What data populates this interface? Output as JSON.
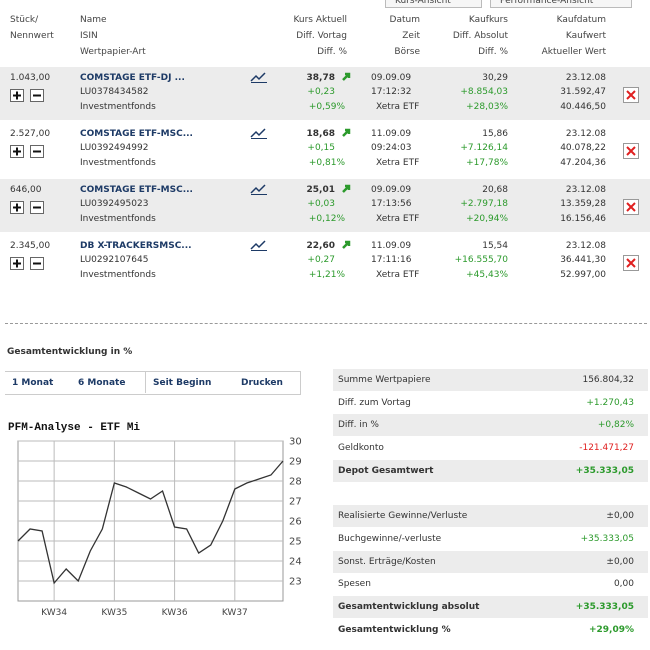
{
  "tabs": [
    "Kurs-Ansicht",
    "Performance-Ansicht"
  ],
  "header": {
    "columns": [
      [
        "Stück/",
        "Nennwert"
      ],
      [
        "Name",
        "ISIN",
        "Wertpapier-Art"
      ],
      [
        "Kurs Aktuell",
        "Diff. Vortag",
        "Diff. %"
      ],
      [
        "Datum",
        "Zeit",
        "Börse"
      ],
      [
        "Kaufkurs",
        "Diff. Absolut",
        "Diff. %"
      ],
      [
        "Kaufdatum",
        "Kaufwert",
        "Aktueller Wert"
      ]
    ]
  },
  "positions": {
    "rows": [
      {
        "units": "1.043,00",
        "name": "COMSTAGE ETF-DJ ...",
        "isin": "LU0378434582",
        "kind": "Investmentfonds",
        "price": "38,78",
        "diff_prev": "+0,23",
        "diff_prev_pct": "+0,59%",
        "date": "09.09.09",
        "time": "17:12:32",
        "exchange": "Xetra ETF",
        "buy_price": "30,29",
        "diff_abs": "+8.854,03",
        "diff_pct": "+28,03%",
        "buy_date": "23.12.08",
        "buy_value": "31.592,47",
        "current_value": "40.446,50"
      },
      {
        "units": "2.527,00",
        "name": "COMSTAGE ETF-MSC...",
        "isin": "LU0392494992",
        "kind": "Investmentfonds",
        "price": "18,68",
        "diff_prev": "+0,15",
        "diff_prev_pct": "+0,81%",
        "date": "11.09.09",
        "time": "09:24:03",
        "exchange": "Xetra ETF",
        "buy_price": "15,86",
        "diff_abs": "+7.126,14",
        "diff_pct": "+17,78%",
        "buy_date": "23.12.08",
        "buy_value": "40.078,22",
        "current_value": "47.204,36"
      },
      {
        "units": "646,00",
        "name": "COMSTAGE ETF-MSC...",
        "isin": "LU0392495023",
        "kind": "Investmentfonds",
        "price": "25,01",
        "diff_prev": "+0,03",
        "diff_prev_pct": "+0,12%",
        "date": "09.09.09",
        "time": "17:13:56",
        "exchange": "Xetra ETF",
        "buy_price": "20,68",
        "diff_abs": "+2.797,18",
        "diff_pct": "+20,94%",
        "buy_date": "23.12.08",
        "buy_value": "13.359,28",
        "current_value": "16.156,46"
      },
      {
        "units": "2.345,00",
        "name": "DB X-TRACKERSMSC...",
        "isin": "LU0292107645",
        "kind": "Investmentfonds",
        "price": "22,60",
        "diff_prev": "+0,27",
        "diff_prev_pct": "+1,21%",
        "date": "11.09.09",
        "time": "17:11:16",
        "exchange": "Xetra ETF",
        "buy_price": "15,54",
        "diff_abs": "+16.555,70",
        "diff_pct": "+45,43%",
        "buy_date": "23.12.08",
        "buy_value": "36.441,30",
        "current_value": "52.997,00"
      }
    ]
  },
  "performance": {
    "title": "Gesamtentwicklung in %",
    "tabs": [
      "1 Monat",
      "6 Monate",
      "Seit Beginn",
      "Drucken"
    ]
  },
  "summary": {
    "rows": [
      [
        "Summe Wertpapiere",
        "156.804,32"
      ],
      [
        "Diff. zum Vortag",
        "+1.270,43"
      ],
      [
        "Diff. in %",
        "+0,82%"
      ],
      [
        "Geldkonto",
        "-121.471,27"
      ],
      [
        "Depot Gesamtwert",
        "+35.333,05"
      ],
      null,
      [
        "Realisierte Gewinne/Verluste",
        "±0,00"
      ],
      [
        "Buchgewinne/-verluste",
        "+35.333,05"
      ],
      [
        "Sonst. Erträge/Kosten",
        "±0,00"
      ],
      [
        "Spesen",
        "0,00"
      ],
      [
        "Gesamtentwicklung absolut",
        "+35.333,05"
      ],
      [
        "Gesamtentwicklung %",
        "+29,09%"
      ]
    ]
  },
  "chart_data": {
    "type": "line",
    "title": "PFM-Analyse - ETF Mi",
    "color": "#333333",
    "x": [
      0,
      1,
      2,
      3,
      4,
      5,
      6,
      7,
      8,
      9,
      10,
      11,
      12,
      13,
      14,
      15,
      16,
      17,
      18,
      19,
      20,
      21,
      22
    ],
    "values": [
      25.0,
      25.6,
      25.5,
      22.9,
      23.6,
      23.0,
      24.5,
      25.6,
      27.9,
      27.7,
      27.4,
      27.1,
      27.5,
      25.7,
      25.6,
      24.4,
      24.8,
      26.0,
      27.6,
      27.9,
      28.1,
      28.3,
      29.0
    ],
    "xlim": [
      0,
      22
    ],
    "xticks": [
      {
        "value": 3,
        "label": "KW34"
      },
      {
        "value": 8,
        "label": "KW35"
      },
      {
        "value": 13,
        "label": "KW36"
      },
      {
        "value": 18,
        "label": "KW37"
      }
    ],
    "ylim": [
      22,
      30
    ],
    "yticks": [
      23,
      24,
      25,
      26,
      27,
      28,
      29,
      30
    ],
    "grid": true
  }
}
